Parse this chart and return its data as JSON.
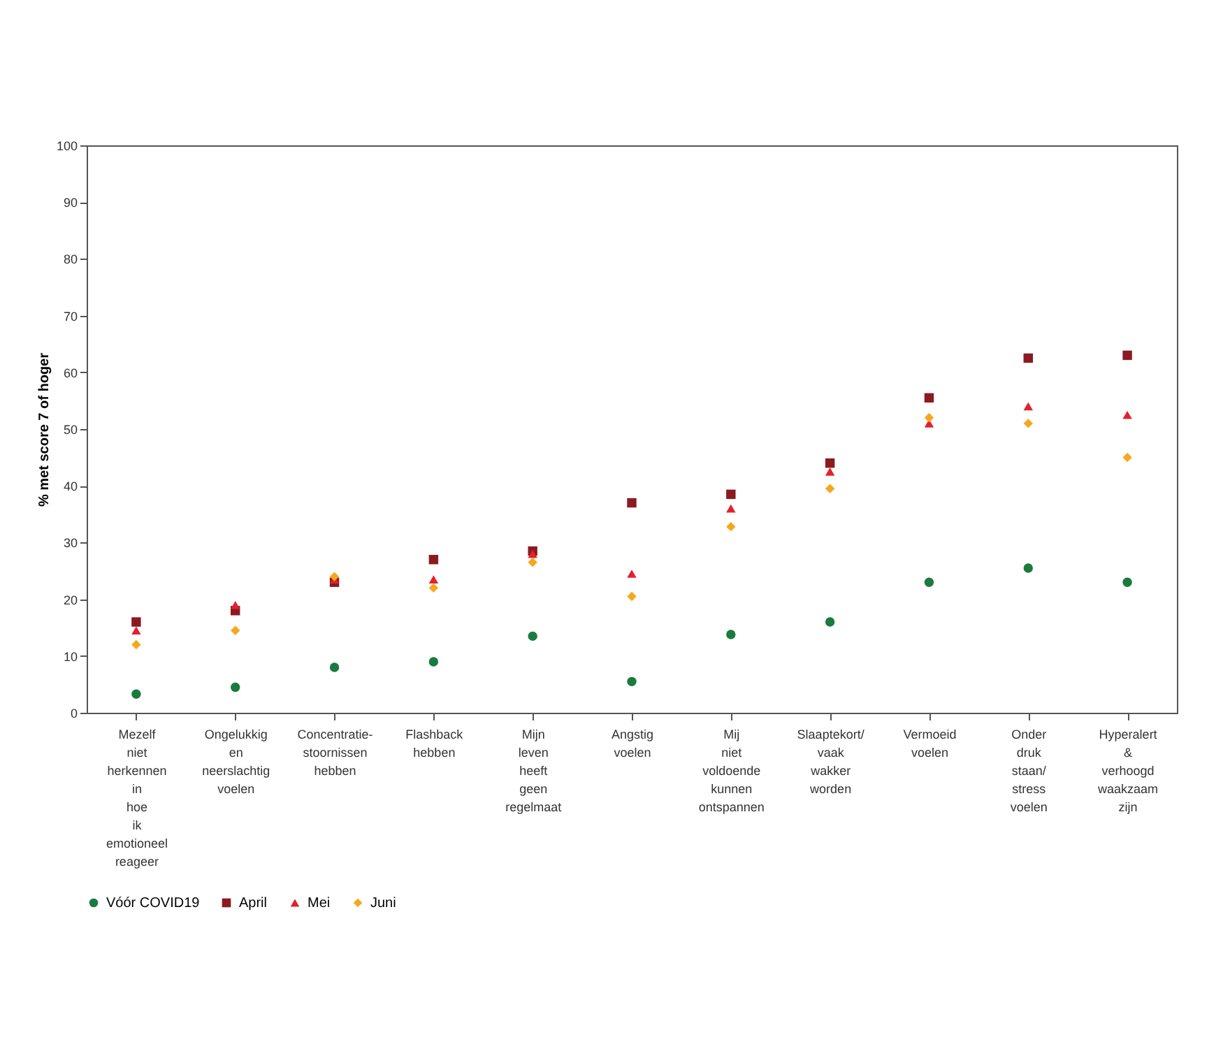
{
  "chart_data": {
    "type": "scatter",
    "ylabel": "% met score 7 of hoger",
    "categories": [
      "Mezelf niet herkennen in hoe ik emotioneel reageer",
      "Ongelukkig en neerslachtig voelen",
      "Concentratie-stoornissen hebben",
      "Flashback hebben",
      "Mijn leven heeft geen regelmaat",
      "Angstig voelen",
      "Mij niet voldoende kunnen ontspannen",
      "Slaaptekort/ vaak wakker worden",
      "Vermoeid voelen",
      "Onder druk staan/ stress voelen",
      "Hyperalert & verhoogd waakzaam zijn"
    ],
    "series": [
      {
        "name": "Vóór COVID19",
        "color": "#1b7a3e",
        "marker": "circle",
        "values": [
          3.3,
          4.5,
          8,
          9,
          13.5,
          5.5,
          13.8,
          16,
          23,
          25.5,
          23
        ]
      },
      {
        "name": "April",
        "color": "#8b1a22",
        "marker": "square",
        "values": [
          16,
          18,
          23,
          27,
          28.5,
          37,
          38.5,
          44,
          55.5,
          62.5,
          63
        ]
      },
      {
        "name": "Mei",
        "color": "#e3202c",
        "marker": "triangle",
        "values": [
          14.5,
          19,
          23.5,
          23.5,
          28,
          24.5,
          36,
          42.5,
          51,
          54,
          52.5
        ]
      },
      {
        "name": "Juni",
        "color": "#f5a81c",
        "marker": "diamond",
        "values": [
          12,
          14.5,
          24,
          22,
          26.5,
          20.5,
          32.8,
          39.5,
          52,
          51,
          45
        ]
      }
    ],
    "ylim": [
      0,
      100
    ],
    "yticks": [
      0,
      10,
      20,
      30,
      40,
      50,
      60,
      70,
      80,
      90,
      100
    ],
    "grid": false,
    "legend": "bottom"
  }
}
